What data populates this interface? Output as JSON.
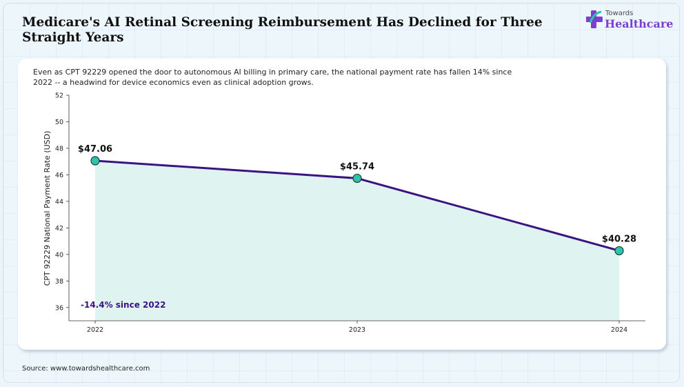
{
  "header": {
    "title": "Medicare's AI Retinal Screening Reimbursement Has Declined for Three Straight Years",
    "logo_top": "Towards",
    "logo_bottom": "Healthcare"
  },
  "subtitle": "Even as CPT 92229 opened the door to autonomous AI billing in primary care, the national payment rate has fallen 14% since 2022 -- a headwind for device economics even as clinical adoption grows.",
  "source": "Source: www.towardshealthcare.com",
  "colors": {
    "line": "#3a1282",
    "marker_fill": "#2ec4a6",
    "area_fill": "#dff4f1",
    "annotation": "#3a1282"
  },
  "chart_data": {
    "type": "line",
    "x": [
      "2022",
      "2023",
      "2024"
    ],
    "values": [
      47.06,
      45.74,
      40.28
    ],
    "data_labels": [
      "$47.06",
      "$45.74",
      "$40.28"
    ],
    "ylabel": "CPT 92229 National Payment Rate (USD)",
    "xlabel": "",
    "ylim": [
      35,
      52
    ],
    "yticks": [
      36,
      38,
      40,
      42,
      44,
      46,
      48,
      50,
      52
    ],
    "area_fill": true,
    "grid": false,
    "annotation": "-14.4% since 2022"
  }
}
